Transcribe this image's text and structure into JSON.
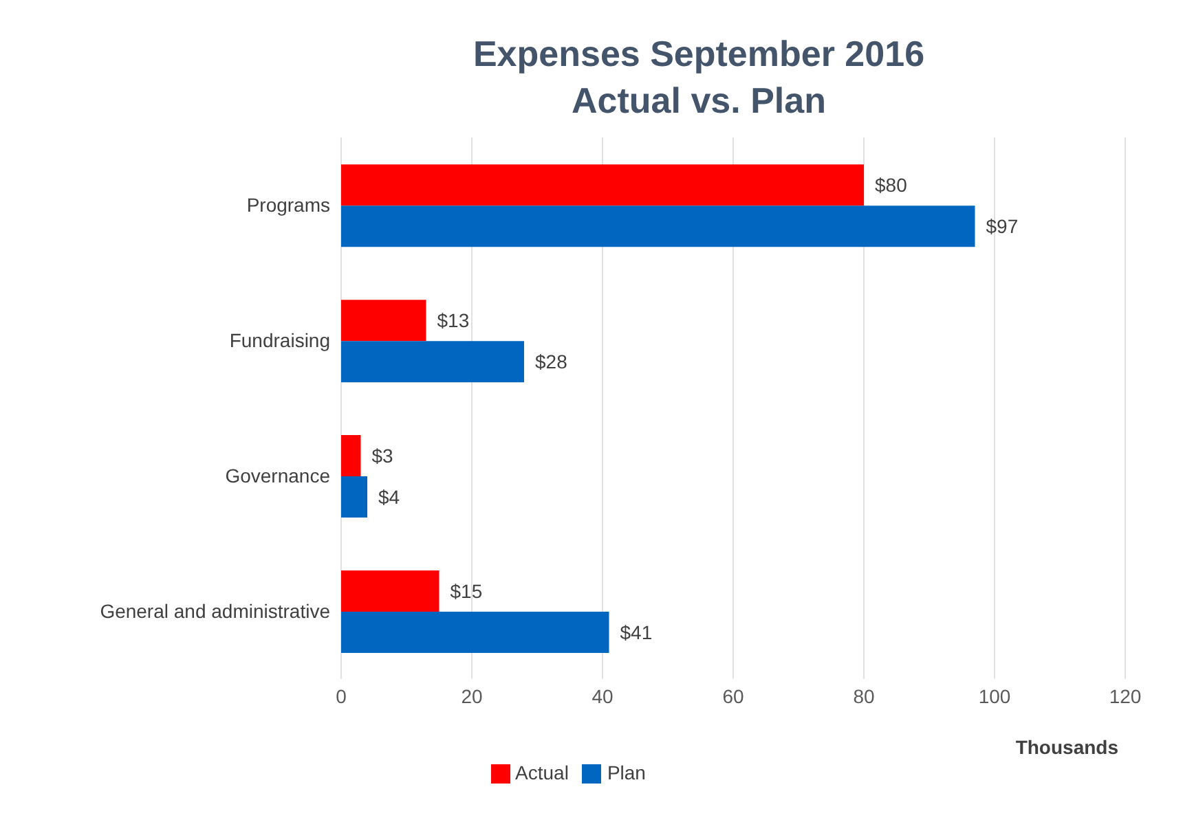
{
  "chart_data": {
    "type": "bar",
    "orientation": "horizontal",
    "title": "Expenses September 2016\nActual vs. Plan",
    "xlabel": "Thousands",
    "categories": [
      "Programs",
      "Fundraising",
      "Governance",
      "General and administrative"
    ],
    "series": [
      {
        "name": "Actual",
        "color": "#ff0000",
        "values": [
          80,
          13,
          3,
          15
        ],
        "value_labels": [
          "$80",
          "$13",
          "$3",
          "$15"
        ]
      },
      {
        "name": "Plan",
        "color": "#0066c0",
        "values": [
          97,
          28,
          4,
          41
        ],
        "value_labels": [
          "$97",
          "$28",
          "$4",
          "$41"
        ]
      }
    ],
    "xlim": [
      0,
      120
    ],
    "xticks": [
      0,
      20,
      40,
      60,
      80,
      100,
      120
    ],
    "grid": "x",
    "legend": "bottom"
  }
}
